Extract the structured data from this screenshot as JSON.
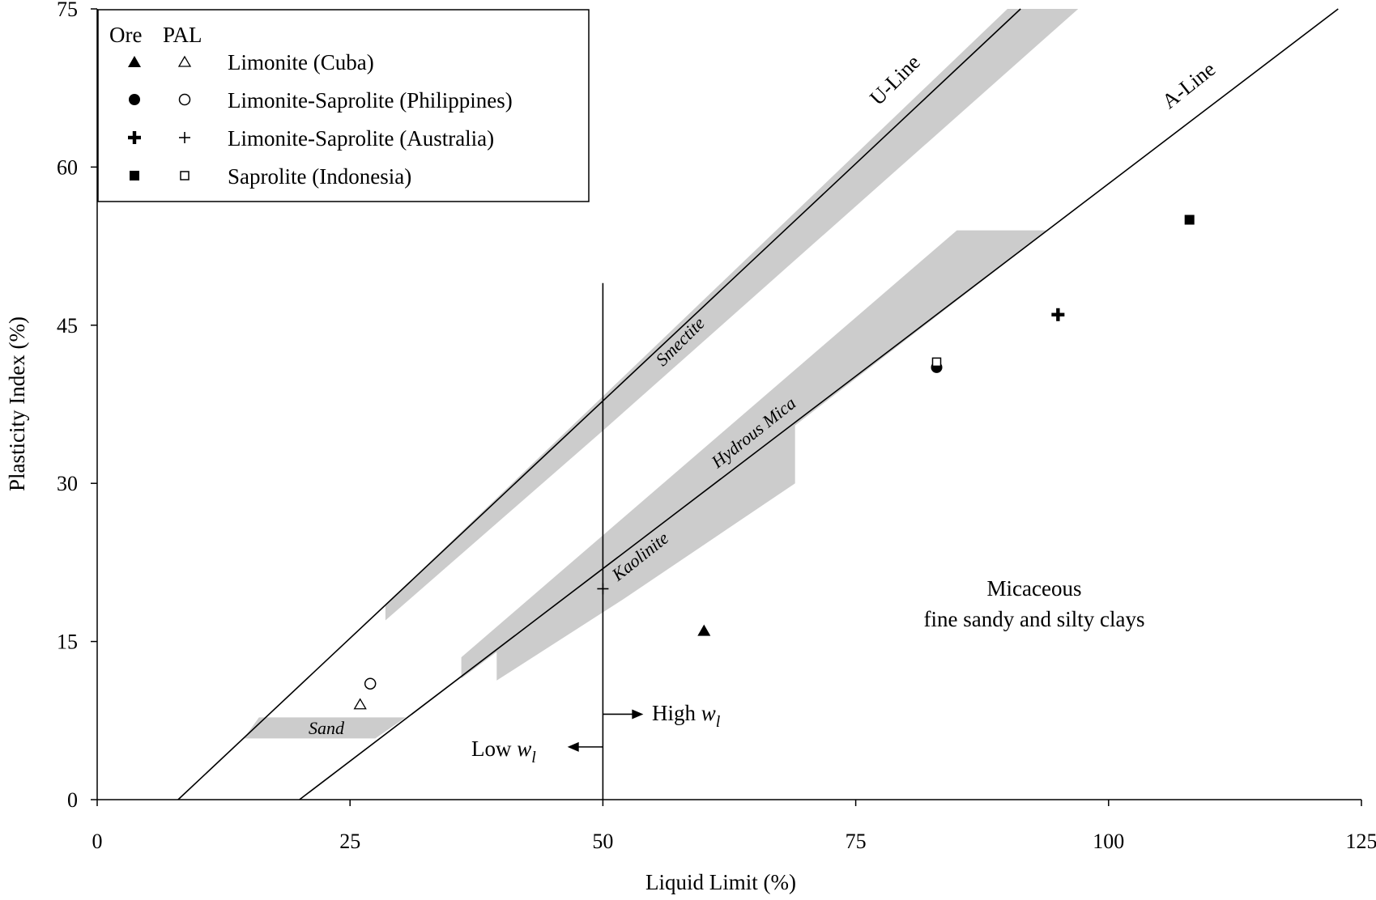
{
  "chart_data": {
    "type": "scatter",
    "title": "",
    "xlabel": "Liquid Limit (%)",
    "ylabel": "Plasticity Index (%)",
    "xlim": [
      0,
      125
    ],
    "ylim": [
      0,
      75
    ],
    "xticks": [
      0,
      25,
      50,
      75,
      100,
      125
    ],
    "yticks": [
      0,
      15,
      30,
      45,
      60,
      75
    ],
    "grid": false,
    "legend": {
      "placement": "top-left",
      "col_headers": [
        "Ore",
        "PAL"
      ],
      "entries": [
        "Limonite (Cuba)",
        "Limonite-Saprolite (Philippines)",
        "Limonite-Saprolite (Australia)",
        "Saprolite (Indonesia)"
      ]
    },
    "series": [
      {
        "name": "Limonite (Cuba)",
        "kind": "Ore",
        "marker": "triangle-filled",
        "x": [
          60
        ],
        "y": [
          16
        ]
      },
      {
        "name": "Limonite (Cuba)",
        "kind": "PAL",
        "marker": "triangle-open",
        "x": [
          26
        ],
        "y": [
          9
        ]
      },
      {
        "name": "Limonite-Saprolite (Philippines)",
        "kind": "Ore",
        "marker": "circle-filled",
        "x": [
          83
        ],
        "y": [
          41
        ]
      },
      {
        "name": "Limonite-Saprolite (Philippines)",
        "kind": "PAL",
        "marker": "circle-open",
        "x": [
          27
        ],
        "y": [
          11
        ]
      },
      {
        "name": "Limonite-Saprolite (Australia)",
        "kind": "Ore",
        "marker": "plus-bold",
        "x": [
          95
        ],
        "y": [
          46
        ]
      },
      {
        "name": "Limonite-Saprolite (Australia)",
        "kind": "PAL",
        "marker": "plus-thin",
        "x": [
          50
        ],
        "y": [
          20
        ]
      },
      {
        "name": "Saprolite (Indonesia)",
        "kind": "Ore",
        "marker": "square-filled",
        "x": [
          108
        ],
        "y": [
          55
        ]
      },
      {
        "name": "Saprolite (Indonesia)",
        "kind": "PAL",
        "marker": "square-open",
        "x": [
          83
        ],
        "y": [
          41.5
        ]
      }
    ],
    "reference_lines": [
      {
        "label": "U-Line",
        "x": [
          8,
          91.3
        ],
        "y": [
          0,
          75
        ]
      },
      {
        "label": "A-Line",
        "x": [
          20,
          122.7
        ],
        "y": [
          0,
          75
        ]
      },
      {
        "label": "",
        "x": [
          50,
          50
        ],
        "y": [
          0,
          49
        ]
      }
    ],
    "zones": [
      {
        "label": "Smectite",
        "polygon": [
          [
            28.5,
            17
          ],
          [
            28.5,
            18.5
          ],
          [
            90,
            75
          ],
          [
            97,
            75
          ],
          [
            50,
            35
          ],
          [
            28.5,
            17
          ]
        ]
      },
      {
        "label": "Hydrous Mica",
        "polygon": [
          [
            36,
            13.5
          ],
          [
            85,
            54
          ],
          [
            94,
            54
          ],
          [
            69,
            35.5
          ],
          [
            69,
            30
          ],
          [
            52,
            19
          ],
          [
            39.5,
            11.3
          ],
          [
            39.5,
            14
          ],
          [
            36,
            11.5
          ]
        ]
      },
      {
        "label": "Kaolinite",
        "polygon": []
      },
      {
        "label": "Sand",
        "polygon": [
          [
            16,
            7.8
          ],
          [
            30.5,
            7.8
          ],
          [
            27.5,
            5.8
          ],
          [
            14.5,
            5.8
          ]
        ]
      }
    ],
    "annotations": {
      "region": [
        "Micaceous",
        "fine sandy and silty clays"
      ],
      "high_wl": {
        "text": "High ",
        "sym": "w",
        "sub": "l",
        "arrow_from": 50,
        "arrow_to": 54,
        "y": 8.1
      },
      "low_wl": {
        "text": "Low ",
        "sym": "w",
        "sub": "l",
        "arrow_from": 50,
        "arrow_to": 46.5,
        "y": 5
      }
    }
  }
}
